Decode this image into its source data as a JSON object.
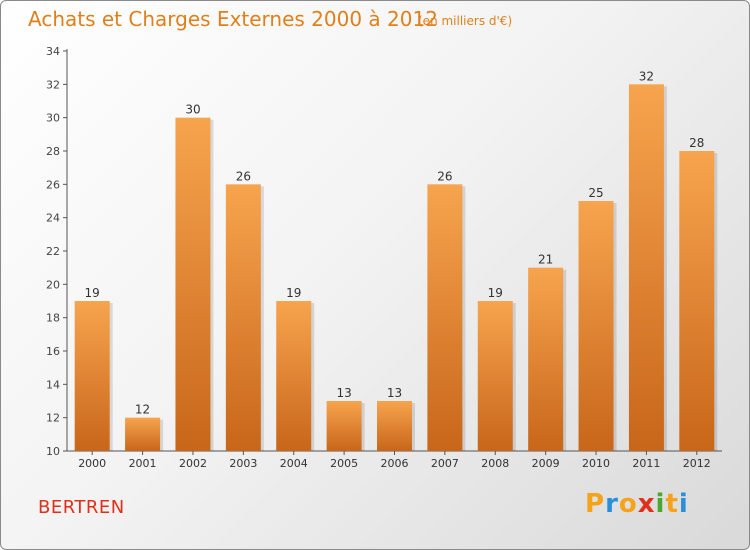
{
  "header": {
    "title": "Achats et Charges Externes 2000 à 2012",
    "subtitle": "(en milliers d'€)"
  },
  "footer": {
    "commune": "BERTREN",
    "logo_letters": [
      "P",
      "r",
      "o",
      "x",
      "i",
      "t",
      "i"
    ],
    "logo_colors": [
      "#f7a21b",
      "#2a8fd8",
      "#f7a21b",
      "#e0301a",
      "#4aa832",
      "#f7a21b",
      "#2a8fd8"
    ]
  },
  "chart_data": {
    "type": "bar",
    "title": "Achats et Charges Externes 2000 à 2012",
    "subtitle": "(en milliers d'€)",
    "categories": [
      "2000",
      "2001",
      "2002",
      "2003",
      "2004",
      "2005",
      "2006",
      "2007",
      "2008",
      "2009",
      "2010",
      "2011",
      "2012"
    ],
    "values": [
      19,
      12,
      30,
      26,
      19,
      13,
      13,
      26,
      19,
      21,
      25,
      32,
      28
    ],
    "ylim": [
      10,
      34
    ],
    "yticks": [
      10,
      12,
      14,
      16,
      18,
      20,
      22,
      24,
      26,
      28,
      30,
      32,
      34
    ],
    "grid": false,
    "bar_color_top": "#f7a44e",
    "bar_color_bottom": "#c8661a"
  }
}
